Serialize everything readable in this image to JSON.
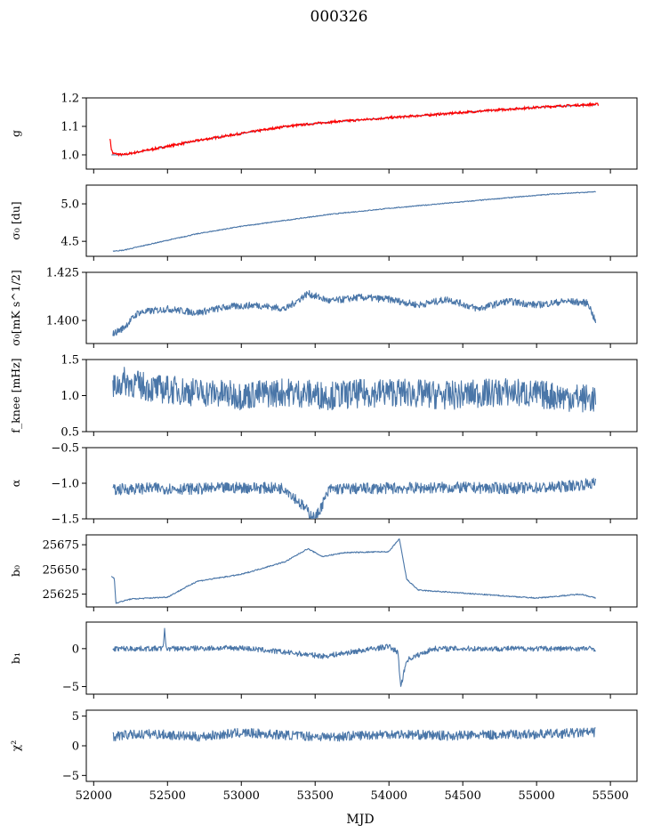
{
  "figure": {
    "title": "000326",
    "xlabel": "MJD"
  },
  "chart_data": [
    {
      "type": "line",
      "ylabel": "g",
      "ylim": [
        0.95,
        1.2
      ],
      "yticks": [
        1.0,
        1.1,
        1.2
      ],
      "ytick_labels": [
        "1.0",
        "1.1",
        "1.2"
      ],
      "xlim": [
        51950,
        55680
      ],
      "xticks": [
        52000,
        52500,
        53000,
        53500,
        54000,
        54500,
        55000,
        55500
      ],
      "series": [
        {
          "name": "g",
          "color": "#4a76a8",
          "x": [
            52120,
            52200,
            52400,
            52700,
            53000,
            53300,
            53600,
            54000,
            54400,
            54800,
            55100,
            55400
          ],
          "y": [
            1.0,
            1.0,
            1.02,
            1.05,
            1.075,
            1.1,
            1.115,
            1.13,
            1.145,
            1.16,
            1.17,
            1.175
          ]
        },
        {
          "name": "g fit",
          "color": "#ff0000",
          "x": [
            52110,
            52120,
            52130,
            52200,
            52400,
            52700,
            53000,
            53300,
            53600,
            54000,
            54400,
            54800,
            55100,
            55420
          ],
          "y": [
            1.06,
            1.02,
            1.005,
            1.0,
            1.02,
            1.05,
            1.075,
            1.1,
            1.115,
            1.13,
            1.145,
            1.16,
            1.17,
            1.178
          ]
        }
      ]
    },
    {
      "type": "line",
      "ylabel": "σ₀ [du]",
      "ylim": [
        4.3,
        5.25
      ],
      "yticks": [
        4.5,
        5.0
      ],
      "ytick_labels": [
        "4.5",
        "5.0"
      ],
      "xlim": [
        51950,
        55680
      ],
      "series": [
        {
          "name": "sigma0_du",
          "color": "#4a76a8",
          "x": [
            52130,
            52200,
            52400,
            52700,
            53000,
            53300,
            53600,
            54000,
            54400,
            54800,
            55100,
            55400
          ],
          "y": [
            4.37,
            4.38,
            4.47,
            4.6,
            4.7,
            4.78,
            4.86,
            4.94,
            5.01,
            5.08,
            5.13,
            5.16
          ]
        }
      ]
    },
    {
      "type": "line",
      "ylabel": "σ₀[mK s^1/2]",
      "ylim": [
        1.388,
        1.425
      ],
      "yticks": [
        1.4,
        1.425
      ],
      "ytick_labels": [
        "1.400",
        "1.425"
      ],
      "xlim": [
        51950,
        55680
      ],
      "series": [
        {
          "name": "sigma0_mKs",
          "color": "#4a76a8",
          "x": [
            52130,
            52200,
            52300,
            52500,
            52700,
            52900,
            53100,
            53300,
            53450,
            53600,
            53800,
            54000,
            54200,
            54400,
            54600,
            54800,
            55000,
            55200,
            55350,
            55400
          ],
          "y": [
            1.393,
            1.396,
            1.404,
            1.406,
            1.404,
            1.407,
            1.408,
            1.406,
            1.414,
            1.41,
            1.412,
            1.411,
            1.408,
            1.411,
            1.406,
            1.41,
            1.408,
            1.41,
            1.409,
            1.399
          ]
        }
      ]
    },
    {
      "type": "line",
      "ylabel": "f_knee [mHz]",
      "ylim": [
        0.5,
        1.5
      ],
      "yticks": [
        0.5,
        1.0,
        1.5
      ],
      "ytick_labels": [
        "0.5",
        "1.0",
        "1.5"
      ],
      "xlim": [
        51950,
        55680
      ],
      "series": [
        {
          "name": "f_knee",
          "color": "#4a76a8",
          "x": [
            52130,
            52200,
            52400,
            52700,
            53000,
            53300,
            53600,
            54000,
            54400,
            54800,
            55100,
            55400
          ],
          "y": [
            1.1,
            1.2,
            1.1,
            1.05,
            1.0,
            1.05,
            1.0,
            1.05,
            1.0,
            1.05,
            1.0,
            0.95
          ]
        }
      ]
    },
    {
      "type": "line",
      "ylabel": "α",
      "ylim": [
        -1.5,
        -0.5
      ],
      "yticks": [
        -1.5,
        -1.0,
        -0.5
      ],
      "ytick_labels": [
        "−1.5",
        "−1.0",
        "−0.5"
      ],
      "xlim": [
        51950,
        55680
      ],
      "series": [
        {
          "name": "alpha",
          "color": "#4a76a8",
          "x": [
            52130,
            52200,
            52400,
            52700,
            53000,
            53300,
            53500,
            53600,
            54000,
            54400,
            54800,
            55100,
            55400
          ],
          "y": [
            -1.1,
            -1.08,
            -1.07,
            -1.08,
            -1.06,
            -1.07,
            -1.5,
            -1.08,
            -1.07,
            -1.06,
            -1.07,
            -1.06,
            -1.0
          ]
        }
      ]
    },
    {
      "type": "line",
      "ylabel": "b₀",
      "ylim": [
        25612,
        25685
      ],
      "yticks": [
        25625,
        25650,
        25675
      ],
      "ytick_labels": [
        "25625",
        "25650",
        "25675"
      ],
      "xlim": [
        51950,
        55680
      ],
      "series": [
        {
          "name": "b0",
          "color": "#4a76a8",
          "x": [
            52120,
            52140,
            52150,
            52250,
            52500,
            52700,
            53000,
            53300,
            53450,
            53550,
            53700,
            54000,
            54070,
            54120,
            54200,
            54500,
            55000,
            55300,
            55400
          ],
          "y": [
            25643,
            25641,
            25616,
            25620,
            25622,
            25638,
            25645,
            25658,
            25671,
            25663,
            25667,
            25668,
            25681,
            25640,
            25629,
            25626,
            25621,
            25625,
            25621
          ]
        }
      ]
    },
    {
      "type": "line",
      "ylabel": "b₁",
      "ylim": [
        -6,
        3.5
      ],
      "yticks": [
        -5,
        0
      ],
      "ytick_labels": [
        "−5",
        "0"
      ],
      "xlim": [
        51950,
        55680
      ],
      "series": [
        {
          "name": "b1",
          "color": "#4a76a8",
          "x": [
            52130,
            52470,
            52480,
            52490,
            53000,
            53560,
            54000,
            54060,
            54080,
            54120,
            54300,
            55000,
            55400
          ],
          "y": [
            0,
            0,
            2.8,
            0,
            0.1,
            -1.0,
            0.3,
            -0.5,
            -5.0,
            -1.5,
            0,
            0,
            0
          ]
        }
      ]
    },
    {
      "type": "line",
      "ylabel": "χ²",
      "ylim": [
        -6,
        6
      ],
      "yticks": [
        -5,
        0,
        5
      ],
      "ytick_labels": [
        "−5",
        "0",
        "5"
      ],
      "xlim": [
        51950,
        55680
      ],
      "xticks": [
        52000,
        52500,
        53000,
        53500,
        54000,
        54500,
        55000,
        55500
      ],
      "xtick_labels": [
        "52000",
        "52500",
        "53000",
        "53500",
        "54000",
        "54500",
        "55000",
        "55500"
      ],
      "series": [
        {
          "name": "chi2",
          "color": "#4a76a8",
          "x": [
            52130,
            52200,
            52400,
            52700,
            53000,
            53300,
            53600,
            54000,
            54400,
            54800,
            55100,
            55400
          ],
          "y": [
            1.5,
            1.8,
            2.0,
            1.5,
            2.2,
            1.8,
            1.5,
            2.0,
            1.7,
            1.9,
            2.0,
            2.3
          ]
        }
      ]
    }
  ]
}
